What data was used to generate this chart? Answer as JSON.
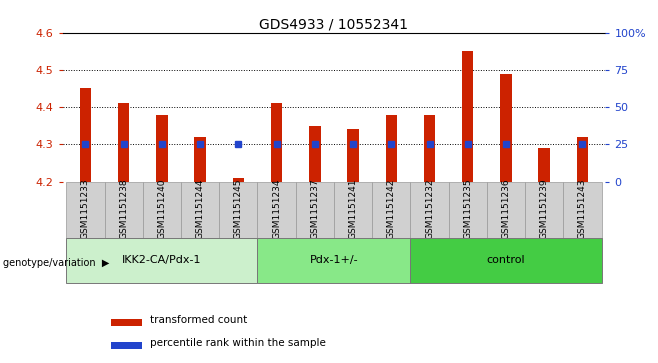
{
  "title": "GDS4933 / 10552341",
  "samples": [
    "GSM1151233",
    "GSM1151238",
    "GSM1151240",
    "GSM1151244",
    "GSM1151245",
    "GSM1151234",
    "GSM1151237",
    "GSM1151241",
    "GSM1151242",
    "GSM1151232",
    "GSM1151235",
    "GSM1151236",
    "GSM1151239",
    "GSM1151243"
  ],
  "red_values": [
    4.45,
    4.41,
    4.38,
    4.32,
    4.21,
    4.41,
    4.35,
    4.34,
    4.38,
    4.38,
    4.55,
    4.49,
    4.29,
    4.32
  ],
  "blue_pct": [
    25,
    25,
    25,
    25,
    25,
    25,
    25,
    25,
    25,
    25,
    25,
    25,
    null,
    25
  ],
  "groups": [
    {
      "label": "IKK2-CA/Pdx-1",
      "start": 0,
      "end": 5,
      "color": "#ccf0cc"
    },
    {
      "label": "Pdx-1+/-",
      "start": 5,
      "end": 9,
      "color": "#88e888"
    },
    {
      "label": "control",
      "start": 9,
      "end": 14,
      "color": "#44cc44"
    }
  ],
  "ylim_left": [
    4.2,
    4.6
  ],
  "ylim_right": [
    0,
    100
  ],
  "yticks_left": [
    4.2,
    4.3,
    4.4,
    4.5,
    4.6
  ],
  "yticks_right": [
    0,
    25,
    50,
    75,
    100
  ],
  "ytick_labels_right": [
    "0",
    "25",
    "50",
    "75",
    "100%"
  ],
  "bar_color": "#cc2200",
  "dot_color": "#2244cc",
  "bar_bottom": 4.2,
  "legend_items": [
    {
      "color": "#cc2200",
      "label": "transformed count"
    },
    {
      "color": "#2244cc",
      "label": "percentile rank within the sample"
    }
  ],
  "bg_plot": "#ffffff",
  "cell_bg": "#d0d0d0",
  "cell_edge": "#999999",
  "grid_color": "#000000",
  "title_color": "#000000",
  "left_tick_color": "#cc2200",
  "right_tick_color": "#2244cc",
  "bar_width": 0.3,
  "dot_size": 5
}
